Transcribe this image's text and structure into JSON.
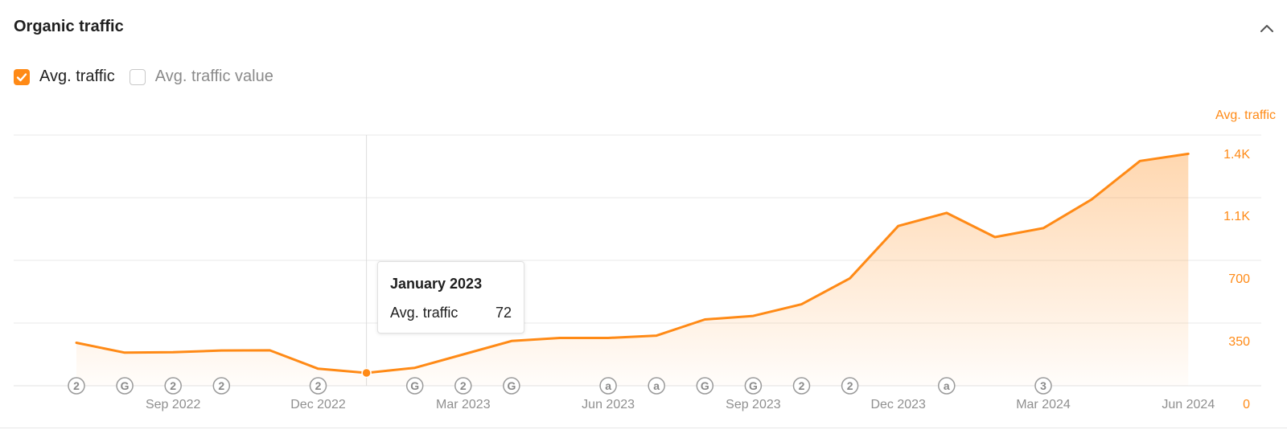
{
  "card": {
    "title": "Organic traffic"
  },
  "legend": {
    "avg_traffic": {
      "label": "Avg. traffic",
      "checked": true
    },
    "avg_traffic_value": {
      "label": "Avg. traffic value",
      "checked": false
    }
  },
  "colors": {
    "accent": "#ff8a16",
    "grid": "#e9e9e9",
    "marker": "#9a9a9a"
  },
  "tooltip": {
    "title": "January 2023",
    "label": "Avg. traffic",
    "value": "72"
  },
  "chart_data": {
    "type": "area",
    "ylabel": "Avg. traffic",
    "yticks": [
      {
        "value": 0,
        "label": "0"
      },
      {
        "value": 350,
        "label": "350"
      },
      {
        "value": 700,
        "label": "700"
      },
      {
        "value": 1050,
        "label": "1.1K"
      },
      {
        "value": 1400,
        "label": "1.4K"
      }
    ],
    "ylim": [
      0,
      1400
    ],
    "xticks": [
      {
        "date": "2022-09",
        "label": "Sep 2022"
      },
      {
        "date": "2022-12",
        "label": "Dec 2022"
      },
      {
        "date": "2023-03",
        "label": "Mar 2023"
      },
      {
        "date": "2023-06",
        "label": "Jun 2023"
      },
      {
        "date": "2023-09",
        "label": "Sep 2023"
      },
      {
        "date": "2023-12",
        "label": "Dec 2023"
      },
      {
        "date": "2024-03",
        "label": "Mar 2024"
      },
      {
        "date": "2024-06",
        "label": "Jun 2024"
      }
    ],
    "grid": true,
    "highlight": {
      "date": "2023-01",
      "value": 72
    },
    "series": [
      {
        "points": [
          {
            "date": "2022-07",
            "value": 240
          },
          {
            "date": "2022-08",
            "value": 185
          },
          {
            "date": "2022-09",
            "value": 187
          },
          {
            "date": "2022-10",
            "value": 197
          },
          {
            "date": "2022-11",
            "value": 198
          },
          {
            "date": "2022-12",
            "value": 95
          },
          {
            "date": "2023-01",
            "value": 72
          },
          {
            "date": "2023-02",
            "value": 100
          },
          {
            "date": "2023-03",
            "value": 175
          },
          {
            "date": "2023-04",
            "value": 250
          },
          {
            "date": "2023-05",
            "value": 267
          },
          {
            "date": "2023-06",
            "value": 267
          },
          {
            "date": "2023-07",
            "value": 280
          },
          {
            "date": "2023-08",
            "value": 370
          },
          {
            "date": "2023-09",
            "value": 390
          },
          {
            "date": "2023-10",
            "value": 455
          },
          {
            "date": "2023-11",
            "value": 600
          },
          {
            "date": "2023-12",
            "value": 892
          },
          {
            "date": "2024-01",
            "value": 965
          },
          {
            "date": "2024-02",
            "value": 830
          },
          {
            "date": "2024-03",
            "value": 880
          },
          {
            "date": "2024-04",
            "value": 1040
          },
          {
            "date": "2024-05",
            "value": 1255
          },
          {
            "date": "2024-06",
            "value": 1295
          }
        ]
      }
    ],
    "annotations": [
      {
        "date": "2022-07",
        "symbol": "2"
      },
      {
        "date": "2022-08",
        "symbol": "G"
      },
      {
        "date": "2022-09",
        "symbol": "2"
      },
      {
        "date": "2022-10",
        "symbol": "2"
      },
      {
        "date": "2022-12",
        "symbol": "2"
      },
      {
        "date": "2023-02",
        "symbol": "G"
      },
      {
        "date": "2023-03",
        "symbol": "2"
      },
      {
        "date": "2023-04",
        "symbol": "G"
      },
      {
        "date": "2023-06",
        "symbol": "a"
      },
      {
        "date": "2023-07",
        "symbol": "a"
      },
      {
        "date": "2023-08",
        "symbol": "G"
      },
      {
        "date": "2023-09",
        "symbol": "G"
      },
      {
        "date": "2023-10",
        "symbol": "2"
      },
      {
        "date": "2023-11",
        "symbol": "2"
      },
      {
        "date": "2024-01",
        "symbol": "a"
      },
      {
        "date": "2024-03",
        "symbol": "3"
      }
    ]
  }
}
